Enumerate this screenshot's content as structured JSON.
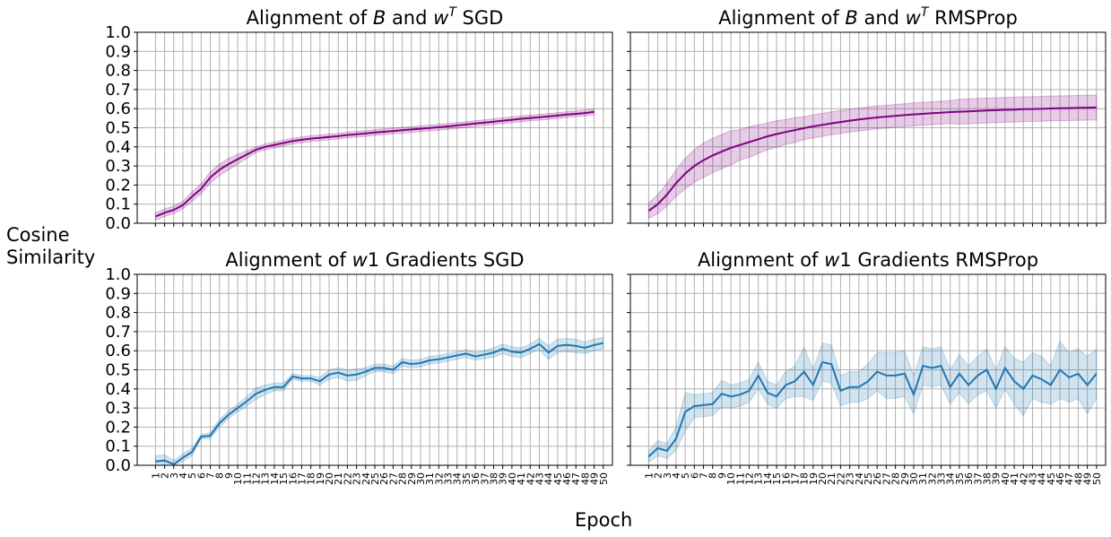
{
  "figure": {
    "ylabel_line1": "Cosine",
    "ylabel_line2": "Similarity",
    "xlabel": "Epoch"
  },
  "chart_data": [
    {
      "type": "line",
      "title": "Alignment of B and w^T SGD",
      "title_parts": [
        "Alignment of ",
        "B",
        " and ",
        "w",
        "T",
        " SGD"
      ],
      "xlabel": "",
      "ylabel": "",
      "ylim": [
        0,
        1.0
      ],
      "yticks": [
        "0.0",
        "0.1",
        "0.2",
        "0.3",
        "0.4",
        "0.5",
        "0.6",
        "0.7",
        "0.8",
        "0.9",
        "1.0"
      ],
      "x": [
        1,
        2,
        3,
        4,
        5,
        6,
        7,
        8,
        9,
        10,
        11,
        12,
        13,
        14,
        15,
        16,
        17,
        18,
        19,
        20,
        21,
        22,
        23,
        24,
        25,
        26,
        27,
        28,
        29,
        30,
        31,
        32,
        33,
        34,
        35,
        36,
        37,
        38,
        39,
        40,
        41,
        42,
        43,
        44,
        45,
        46,
        47,
        48,
        49
      ],
      "show_xtick_labels": false,
      "grid": true,
      "color": "#800080",
      "series": [
        {
          "values": [
            0.035,
            0.055,
            0.07,
            0.095,
            0.14,
            0.18,
            0.24,
            0.28,
            0.31,
            0.335,
            0.36,
            0.385,
            0.4,
            0.41,
            0.42,
            0.43,
            0.437,
            0.443,
            0.447,
            0.452,
            0.456,
            0.462,
            0.466,
            0.47,
            0.475,
            0.479,
            0.483,
            0.487,
            0.491,
            0.495,
            0.499,
            0.503,
            0.507,
            0.512,
            0.517,
            0.522,
            0.527,
            0.532,
            0.537,
            0.542,
            0.547,
            0.551,
            0.555,
            0.559,
            0.564,
            0.569,
            0.573,
            0.577,
            0.583
          ],
          "band_width": [
            0.02,
            0.02,
            0.02,
            0.02,
            0.025,
            0.025,
            0.03,
            0.03,
            0.03,
            0.025,
            0.02,
            0.015,
            0.015,
            0.015,
            0.015,
            0.015,
            0.015,
            0.015,
            0.015,
            0.015,
            0.015,
            0.015,
            0.015,
            0.015,
            0.015,
            0.015,
            0.015,
            0.015,
            0.015,
            0.015,
            0.015,
            0.015,
            0.015,
            0.015,
            0.015,
            0.015,
            0.015,
            0.015,
            0.015,
            0.015,
            0.015,
            0.015,
            0.015,
            0.015,
            0.015,
            0.015,
            0.015,
            0.015,
            0.015
          ]
        }
      ]
    },
    {
      "type": "line",
      "title": "Alignment of B and w^T RMSProp",
      "title_parts": [
        "Alignment of ",
        "B",
        " and ",
        "w",
        "T",
        " RMSProp"
      ],
      "xlabel": "",
      "ylabel": "",
      "ylim": [
        0,
        1.0
      ],
      "yticks": [
        "0.0",
        "0.1",
        "0.2",
        "0.3",
        "0.4",
        "0.5",
        "0.6",
        "0.7",
        "0.8",
        "0.9",
        "1.0"
      ],
      "x": [
        1,
        2,
        3,
        4,
        5,
        6,
        7,
        8,
        9,
        10,
        11,
        12,
        13,
        14,
        15,
        16,
        17,
        18,
        19,
        20,
        21,
        22,
        23,
        24,
        25,
        26,
        27,
        28,
        29,
        30,
        31,
        32,
        33,
        34,
        35,
        36,
        37,
        38,
        39,
        40,
        41,
        42,
        43,
        44,
        45,
        46,
        47,
        48,
        49,
        50
      ],
      "show_xtick_labels": false,
      "show_ytick_labels": false,
      "grid": true,
      "color": "#800080",
      "series": [
        {
          "values": [
            0.065,
            0.1,
            0.15,
            0.21,
            0.26,
            0.3,
            0.33,
            0.355,
            0.375,
            0.395,
            0.41,
            0.425,
            0.44,
            0.455,
            0.467,
            0.478,
            0.488,
            0.498,
            0.507,
            0.515,
            0.523,
            0.53,
            0.537,
            0.543,
            0.549,
            0.554,
            0.558,
            0.562,
            0.566,
            0.57,
            0.573,
            0.576,
            0.579,
            0.582,
            0.584,
            0.586,
            0.588,
            0.59,
            0.592,
            0.594,
            0.595,
            0.597,
            0.598,
            0.599,
            0.601,
            0.602,
            0.603,
            0.604,
            0.605,
            0.606
          ],
          "band_width": [
            0.04,
            0.05,
            0.06,
            0.07,
            0.08,
            0.085,
            0.09,
            0.09,
            0.09,
            0.09,
            0.08,
            0.08,
            0.075,
            0.07,
            0.07,
            0.065,
            0.065,
            0.06,
            0.06,
            0.06,
            0.06,
            0.06,
            0.06,
            0.06,
            0.06,
            0.06,
            0.06,
            0.06,
            0.06,
            0.06,
            0.06,
            0.06,
            0.06,
            0.06,
            0.065,
            0.065,
            0.065,
            0.065,
            0.065,
            0.065,
            0.065,
            0.065,
            0.065,
            0.065,
            0.065,
            0.065,
            0.065,
            0.065,
            0.065,
            0.065
          ]
        }
      ]
    },
    {
      "type": "line",
      "title": "Alignment of w1 Gradients SGD",
      "title_parts": [
        "Alignment of ",
        "w",
        "",
        "",
        "1",
        " Gradients SGD"
      ],
      "xlabel": "",
      "ylabel": "",
      "ylim": [
        0,
        1.0
      ],
      "yticks": [
        "0.0",
        "0.1",
        "0.2",
        "0.3",
        "0.4",
        "0.5",
        "0.6",
        "0.7",
        "0.8",
        "0.9",
        "1.0"
      ],
      "x": [
        1,
        2,
        3,
        4,
        5,
        6,
        7,
        8,
        9,
        10,
        11,
        12,
        13,
        14,
        15,
        16,
        17,
        18,
        19,
        20,
        21,
        22,
        23,
        24,
        25,
        26,
        27,
        28,
        29,
        30,
        31,
        32,
        33,
        34,
        35,
        36,
        37,
        38,
        39,
        40,
        41,
        42,
        43,
        44,
        45,
        46,
        47,
        48,
        49,
        50
      ],
      "show_xtick_labels": true,
      "grid": true,
      "color": "#1f77b4",
      "series": [
        {
          "values": [
            0.02,
            0.025,
            0.005,
            0.04,
            0.07,
            0.15,
            0.155,
            0.22,
            0.265,
            0.3,
            0.335,
            0.375,
            0.395,
            0.41,
            0.41,
            0.465,
            0.455,
            0.455,
            0.44,
            0.475,
            0.485,
            0.47,
            0.475,
            0.49,
            0.51,
            0.51,
            0.5,
            0.54,
            0.53,
            0.535,
            0.55,
            0.555,
            0.565,
            0.575,
            0.585,
            0.57,
            0.58,
            0.59,
            0.61,
            0.595,
            0.59,
            0.61,
            0.635,
            0.59,
            0.625,
            0.63,
            0.625,
            0.615,
            0.63,
            0.64
          ],
          "band_width": [
            0.03,
            0.03,
            0.02,
            0.02,
            0.02,
            0.01,
            0.015,
            0.02,
            0.02,
            0.02,
            0.025,
            0.03,
            0.025,
            0.02,
            0.02,
            0.015,
            0.015,
            0.015,
            0.02,
            0.025,
            0.025,
            0.03,
            0.03,
            0.02,
            0.02,
            0.02,
            0.02,
            0.02,
            0.02,
            0.02,
            0.02,
            0.02,
            0.02,
            0.02,
            0.02,
            0.02,
            0.02,
            0.025,
            0.025,
            0.025,
            0.025,
            0.025,
            0.03,
            0.035,
            0.035,
            0.035,
            0.035,
            0.03,
            0.03,
            0.03
          ]
        }
      ]
    },
    {
      "type": "line",
      "title": "Alignment of w1 Gradients RMSProp",
      "title_parts": [
        "Alignment of ",
        "w",
        "",
        "",
        "1",
        " Gradients RMSProp"
      ],
      "xlabel": "",
      "ylabel": "",
      "ylim": [
        0,
        1.0
      ],
      "yticks": [
        "0.0",
        "0.1",
        "0.2",
        "0.3",
        "0.4",
        "0.5",
        "0.6",
        "0.7",
        "0.8",
        "0.9",
        "1.0"
      ],
      "x": [
        1,
        2,
        3,
        4,
        5,
        6,
        7,
        8,
        9,
        10,
        11,
        12,
        13,
        14,
        15,
        16,
        17,
        18,
        19,
        20,
        21,
        22,
        23,
        24,
        25,
        26,
        27,
        28,
        29,
        30,
        31,
        32,
        33,
        34,
        35,
        36,
        37,
        38,
        39,
        40,
        41,
        42,
        43,
        44,
        45,
        46,
        47,
        48,
        49,
        50
      ],
      "show_xtick_labels": true,
      "show_ytick_labels": false,
      "grid": true,
      "color": "#1f77b4",
      "series": [
        {
          "values": [
            0.045,
            0.09,
            0.075,
            0.14,
            0.28,
            0.31,
            0.315,
            0.32,
            0.375,
            0.36,
            0.37,
            0.39,
            0.47,
            0.38,
            0.36,
            0.42,
            0.44,
            0.49,
            0.42,
            0.54,
            0.53,
            0.39,
            0.41,
            0.41,
            0.44,
            0.49,
            0.47,
            0.47,
            0.48,
            0.37,
            0.52,
            0.51,
            0.52,
            0.41,
            0.48,
            0.42,
            0.47,
            0.5,
            0.4,
            0.51,
            0.44,
            0.4,
            0.47,
            0.45,
            0.42,
            0.5,
            0.46,
            0.48,
            0.42,
            0.48
          ],
          "band_width": [
            0.03,
            0.04,
            0.04,
            0.06,
            0.1,
            0.06,
            0.06,
            0.06,
            0.07,
            0.06,
            0.06,
            0.06,
            0.07,
            0.06,
            0.06,
            0.07,
            0.08,
            0.13,
            0.08,
            0.1,
            0.1,
            0.08,
            0.08,
            0.08,
            0.09,
            0.1,
            0.12,
            0.12,
            0.12,
            0.1,
            0.1,
            0.1,
            0.1,
            0.09,
            0.1,
            0.1,
            0.1,
            0.11,
            0.1,
            0.11,
            0.12,
            0.14,
            0.12,
            0.12,
            0.1,
            0.15,
            0.13,
            0.13,
            0.15,
            0.13
          ]
        }
      ]
    }
  ]
}
